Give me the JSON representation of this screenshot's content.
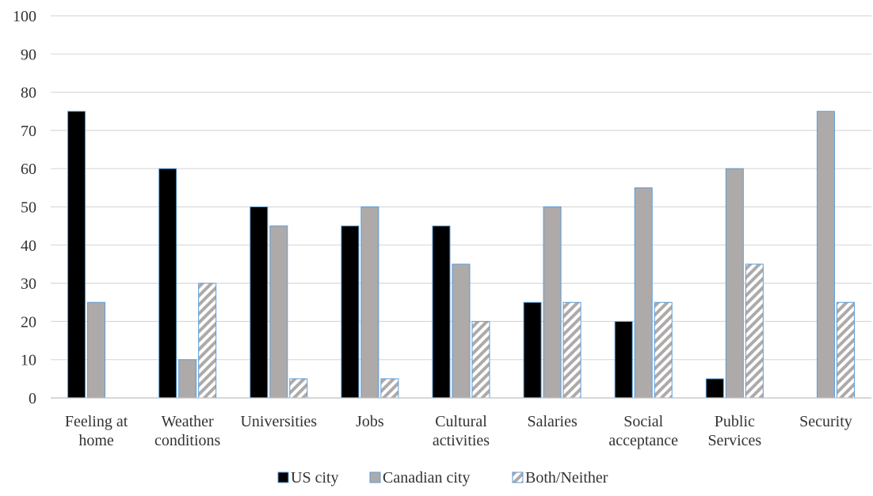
{
  "chart_data": {
    "type": "bar",
    "title": "",
    "xlabel": "",
    "ylabel": "",
    "ylim": [
      0,
      100
    ],
    "yticks": [
      0,
      10,
      20,
      30,
      40,
      50,
      60,
      70,
      80,
      90,
      100
    ],
    "grid": true,
    "legend_position": "bottom",
    "categories": [
      [
        "Feeling at",
        "home"
      ],
      [
        "Weather",
        "conditions"
      ],
      [
        "Universities"
      ],
      [
        "Jobs"
      ],
      [
        "Cultural",
        "activities"
      ],
      [
        "Salaries"
      ],
      [
        "Social",
        "acceptance"
      ],
      [
        "Public",
        "Services"
      ],
      [
        "Security"
      ]
    ],
    "series": [
      {
        "name": "US city",
        "fill": "#000000",
        "pattern": "solid",
        "values": [
          75,
          60,
          50,
          45,
          45,
          25,
          20,
          5,
          0
        ]
      },
      {
        "name": "Canadian city",
        "fill": "#aeaaaa",
        "pattern": "solid",
        "values": [
          25,
          10,
          45,
          50,
          35,
          50,
          55,
          60,
          75
        ]
      },
      {
        "name": "Both/Neither",
        "fill": "#aeaaaa",
        "pattern": "diagonal-stripe",
        "values": [
          0,
          30,
          5,
          5,
          20,
          25,
          25,
          35,
          25
        ]
      }
    ],
    "colors": {
      "bar_outline": "#5b9bd5",
      "grid": "#d9d9d9",
      "axis": "#bfbfbf"
    }
  }
}
